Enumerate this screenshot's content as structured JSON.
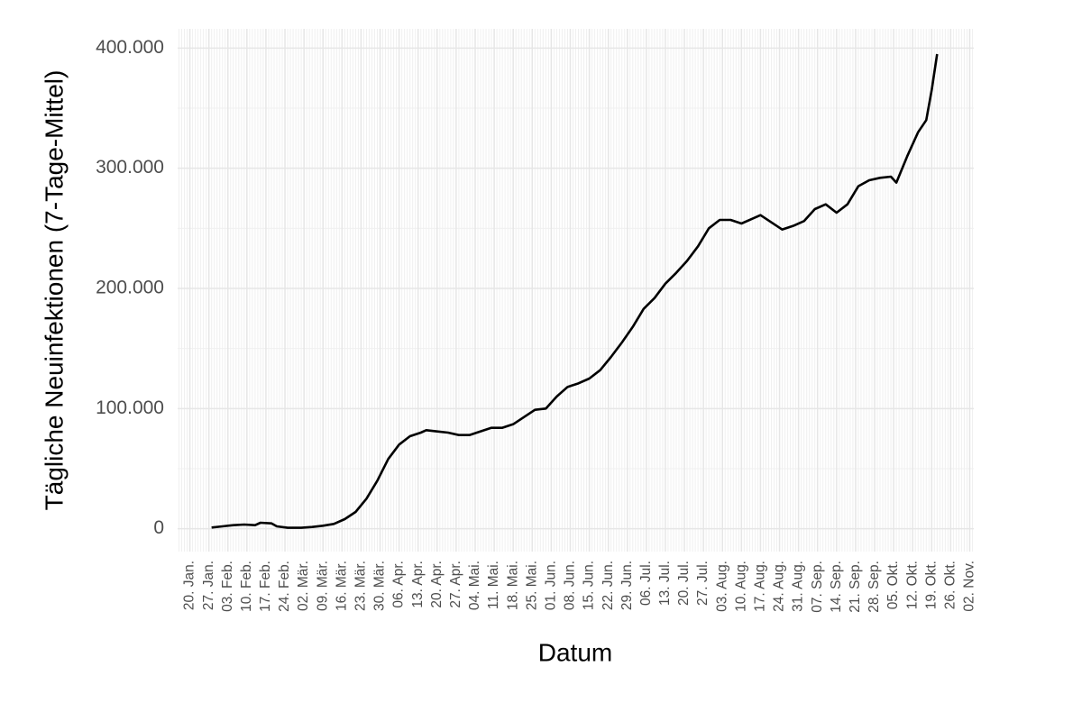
{
  "chart_data": {
    "type": "line",
    "xlabel": "Datum",
    "ylabel": "Tägliche Neuinfektionen (7-Tage-Mittel)",
    "color": "#000000",
    "grid": true,
    "x": [
      "28. Jan.",
      "01. Feb.",
      "05. Feb.",
      "09. Feb.",
      "13. Feb.",
      "15. Feb.",
      "19. Feb.",
      "21. Feb.",
      "25. Feb.",
      "01. Mär.",
      "05. Mär.",
      "09. Mär.",
      "13. Mär.",
      "17. Mär.",
      "21. Mär.",
      "25. Mär.",
      "29. Mär.",
      "02. Apr.",
      "06. Apr.",
      "10. Apr.",
      "14. Apr.",
      "16. Apr.",
      "20. Apr.",
      "24. Apr.",
      "28. Apr.",
      "02. Mai.",
      "06. Mai.",
      "10. Mai.",
      "14. Mai.",
      "18. Mai.",
      "22. Mai.",
      "26. Mai.",
      "30. Mai.",
      "03. Jun.",
      "07. Jun.",
      "11. Jun.",
      "15. Jun.",
      "19. Jun.",
      "23. Jun.",
      "27. Jun.",
      "01. Jul.",
      "05. Jul.",
      "09. Jul.",
      "13. Jul.",
      "17. Jul.",
      "21. Jul.",
      "25. Jul.",
      "29. Jul.",
      "02. Aug.",
      "06. Aug.",
      "10. Aug.",
      "14. Aug.",
      "17. Aug.",
      "21. Aug.",
      "25. Aug.",
      "29. Aug.",
      "02. Sep.",
      "06. Sep.",
      "10. Sep.",
      "14. Sep.",
      "18. Sep.",
      "22. Sep.",
      "26. Sep.",
      "30. Sep.",
      "04. Okt.",
      "06. Okt.",
      "10. Okt.",
      "14. Okt.",
      "17. Okt.",
      "19. Okt.",
      "21. Okt."
    ],
    "values": [
      1000,
      2000,
      3000,
      3500,
      3000,
      5000,
      4500,
      2000,
      800,
      800,
      1500,
      2500,
      4000,
      8000,
      14000,
      25000,
      40000,
      58000,
      70000,
      77000,
      80000,
      82000,
      81000,
      80000,
      78000,
      78000,
      81000,
      84000,
      84000,
      87000,
      93000,
      99000,
      100000,
      110000,
      118000,
      121000,
      125000,
      132000,
      143000,
      155000,
      168000,
      183000,
      192000,
      204000,
      213000,
      223000,
      235000,
      250000,
      257000,
      257000,
      254000,
      258000,
      261000,
      255000,
      249000,
      252000,
      256000,
      266000,
      270000,
      263000,
      270000,
      285000,
      290000,
      292000,
      293000,
      288000,
      310000,
      330000,
      340000,
      365000,
      395000
    ],
    "xticks": [
      "20. Jan.",
      "27. Jan.",
      "03. Feb.",
      "10. Feb.",
      "17. Feb.",
      "24. Feb.",
      "02. Mär.",
      "09. Mär.",
      "16. Mär.",
      "23. Mär.",
      "30. Mär.",
      "06. Apr.",
      "13. Apr.",
      "20. Apr.",
      "27. Apr.",
      "04. Mai.",
      "11. Mai.",
      "18. Mai.",
      "25. Mai.",
      "01. Jun.",
      "08. Jun.",
      "15. Jun.",
      "22. Jun.",
      "29. Jun.",
      "06. Jul.",
      "13. Jul.",
      "20. Jul.",
      "27. Jul.",
      "03. Aug.",
      "10. Aug.",
      "17. Aug.",
      "24. Aug.",
      "31. Aug.",
      "07. Sep.",
      "14. Sep.",
      "21. Sep.",
      "28. Sep.",
      "05. Okt.",
      "12. Okt.",
      "19. Okt.",
      "26. Okt.",
      "02. Nov."
    ],
    "ylim": [
      -19000,
      416000
    ],
    "yticks": [
      0,
      {
        "value": 100000,
        "label": "100.000"
      },
      {
        "value": 200000,
        "label": "200.000"
      },
      {
        "value": 300000,
        "label": "300.000"
      },
      {
        "value": 400000,
        "label": "400.000"
      }
    ]
  }
}
